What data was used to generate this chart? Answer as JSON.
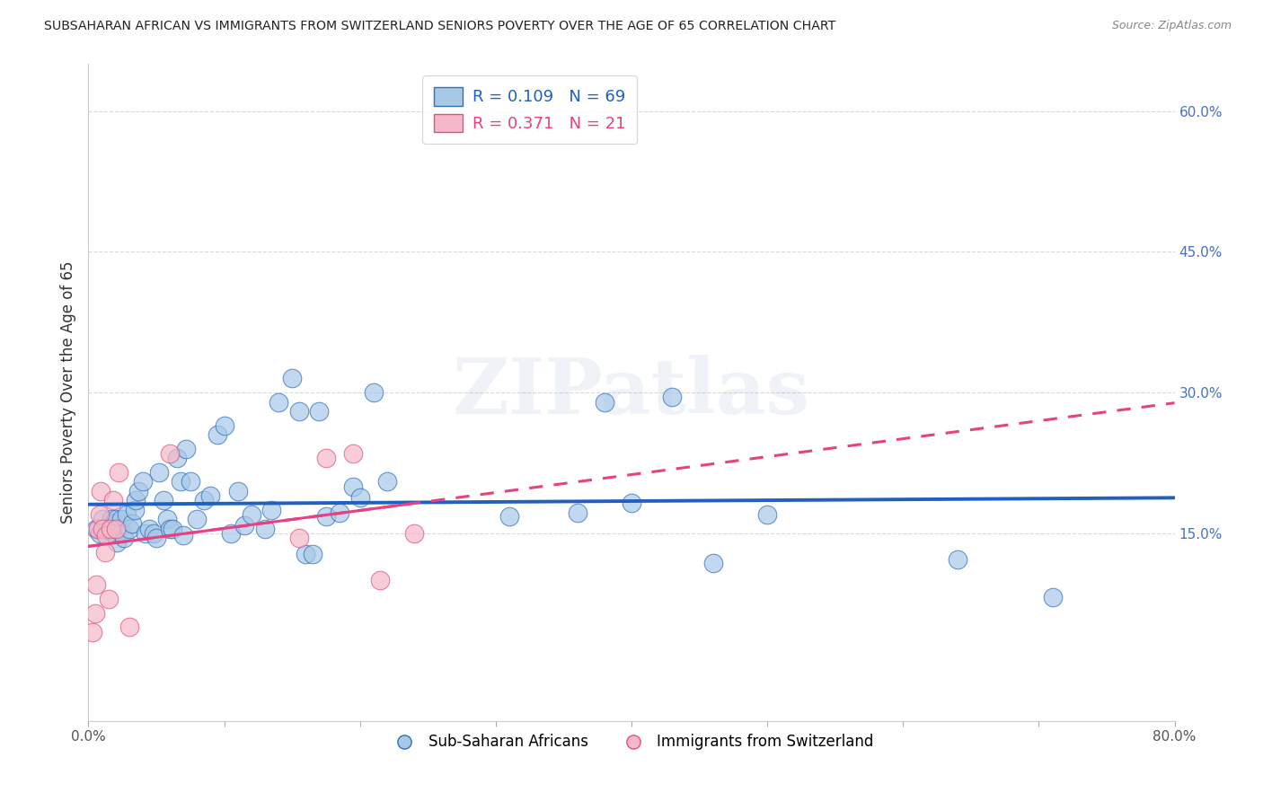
{
  "title": "SUBSAHARAN AFRICAN VS IMMIGRANTS FROM SWITZERLAND SENIORS POVERTY OVER THE AGE OF 65 CORRELATION CHART",
  "source": "Source: ZipAtlas.com",
  "ylabel": "Seniors Poverty Over the Age of 65",
  "xlim": [
    0.0,
    0.8
  ],
  "ylim": [
    -0.05,
    0.65
  ],
  "xticks": [
    0.0,
    0.1,
    0.2,
    0.3,
    0.4,
    0.5,
    0.6,
    0.7,
    0.8
  ],
  "xticklabels": [
    "0.0%",
    "",
    "",
    "",
    "",
    "",
    "",
    "",
    "80.0%"
  ],
  "ytick_right_labels": [
    "60.0%",
    "45.0%",
    "30.0%",
    "15.0%"
  ],
  "ytick_right_values": [
    0.6,
    0.45,
    0.3,
    0.15
  ],
  "legend_label1": "Sub-Saharan Africans",
  "legend_label2": "Immigrants from Switzerland",
  "R1": 0.109,
  "N1": 69,
  "R2": 0.371,
  "N2": 21,
  "blue_color": "#a8c8e8",
  "pink_color": "#f4b8c8",
  "blue_line_color": "#3070b8",
  "pink_line_color": "#e05080",
  "blue_reg_color": "#2060c0",
  "pink_reg_color": "#e84080",
  "background_color": "#ffffff",
  "grid_color": "#d0d0d0",
  "title_color": "#222222",
  "watermark": "ZIPatlas",
  "blue_scatter_x": [
    0.006,
    0.008,
    0.01,
    0.012,
    0.014,
    0.016,
    0.017,
    0.018,
    0.019,
    0.02,
    0.021,
    0.022,
    0.023,
    0.024,
    0.025,
    0.026,
    0.028,
    0.03,
    0.032,
    0.034,
    0.035,
    0.037,
    0.04,
    0.042,
    0.045,
    0.048,
    0.05,
    0.052,
    0.055,
    0.058,
    0.06,
    0.062,
    0.065,
    0.068,
    0.07,
    0.072,
    0.075,
    0.08,
    0.085,
    0.09,
    0.095,
    0.1,
    0.105,
    0.11,
    0.115,
    0.12,
    0.13,
    0.135,
    0.14,
    0.15,
    0.155,
    0.16,
    0.165,
    0.17,
    0.175,
    0.185,
    0.195,
    0.2,
    0.21,
    0.22,
    0.31,
    0.36,
    0.38,
    0.4,
    0.43,
    0.46,
    0.5,
    0.64,
    0.71
  ],
  "blue_scatter_y": [
    0.155,
    0.15,
    0.165,
    0.155,
    0.155,
    0.155,
    0.165,
    0.16,
    0.15,
    0.165,
    0.14,
    0.155,
    0.155,
    0.165,
    0.15,
    0.145,
    0.17,
    0.155,
    0.16,
    0.175,
    0.185,
    0.195,
    0.205,
    0.15,
    0.155,
    0.15,
    0.145,
    0.215,
    0.185,
    0.165,
    0.155,
    0.155,
    0.23,
    0.205,
    0.148,
    0.24,
    0.205,
    0.165,
    0.185,
    0.19,
    0.255,
    0.265,
    0.15,
    0.195,
    0.158,
    0.17,
    0.155,
    0.175,
    0.29,
    0.315,
    0.28,
    0.128,
    0.128,
    0.28,
    0.168,
    0.172,
    0.2,
    0.188,
    0.3,
    0.205,
    0.168,
    0.172,
    0.29,
    0.182,
    0.295,
    0.118,
    0.17,
    0.122,
    0.082
  ],
  "pink_scatter_x": [
    0.003,
    0.005,
    0.006,
    0.007,
    0.008,
    0.009,
    0.01,
    0.012,
    0.013,
    0.015,
    0.016,
    0.018,
    0.02,
    0.022,
    0.03,
    0.06,
    0.155,
    0.175,
    0.195,
    0.215,
    0.24
  ],
  "pink_scatter_y": [
    0.045,
    0.065,
    0.095,
    0.155,
    0.17,
    0.195,
    0.155,
    0.13,
    0.148,
    0.08,
    0.155,
    0.185,
    0.155,
    0.215,
    0.05,
    0.235,
    0.145,
    0.23,
    0.235,
    0.1,
    0.15
  ]
}
